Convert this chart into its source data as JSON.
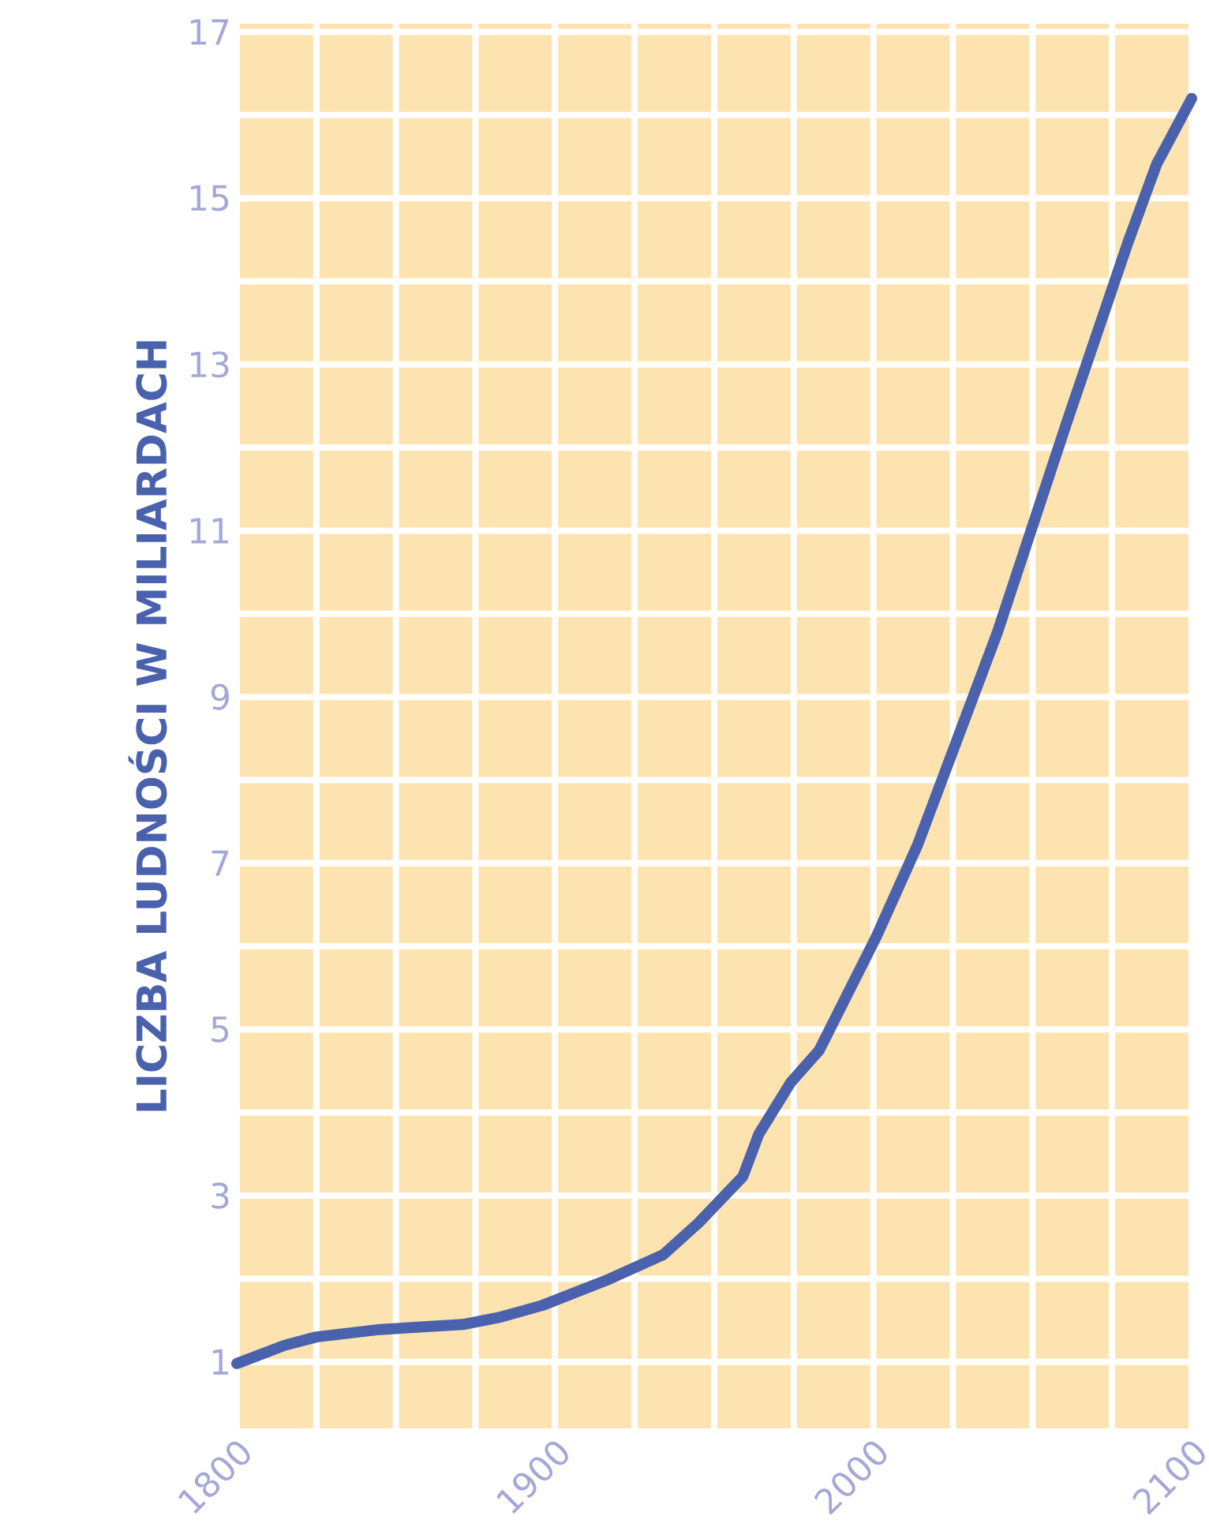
{
  "chart_data": {
    "type": "line",
    "ylabel": "LICZBA LUDNOŚCI W MILIARDACH",
    "x": [
      1800,
      1815,
      1825,
      1845,
      1871,
      1883,
      1896,
      1916,
      1934,
      1945,
      1959,
      1964,
      1974,
      1983,
      2001,
      2014,
      2039,
      2061,
      2080,
      2089,
      2100
    ],
    "series": [
      {
        "color": "#4a62ad",
        "values": [
          0.98,
          1.2,
          1.3,
          1.39,
          1.45,
          1.54,
          1.68,
          1.98,
          2.29,
          2.67,
          3.23,
          3.74,
          4.36,
          4.75,
          6.12,
          7.23,
          9.78,
          12.33,
          14.47,
          15.41,
          16.2
        ]
      }
    ],
    "xlim": [
      1800,
      2100
    ],
    "ylim": [
      0.2,
      17.1
    ],
    "xticks": [
      1800,
      1900,
      2000,
      2100
    ],
    "yticks": [
      1,
      3,
      5,
      7,
      9,
      11,
      13,
      15,
      17
    ],
    "grid": true,
    "marker": "none",
    "line_style": "solid"
  }
}
